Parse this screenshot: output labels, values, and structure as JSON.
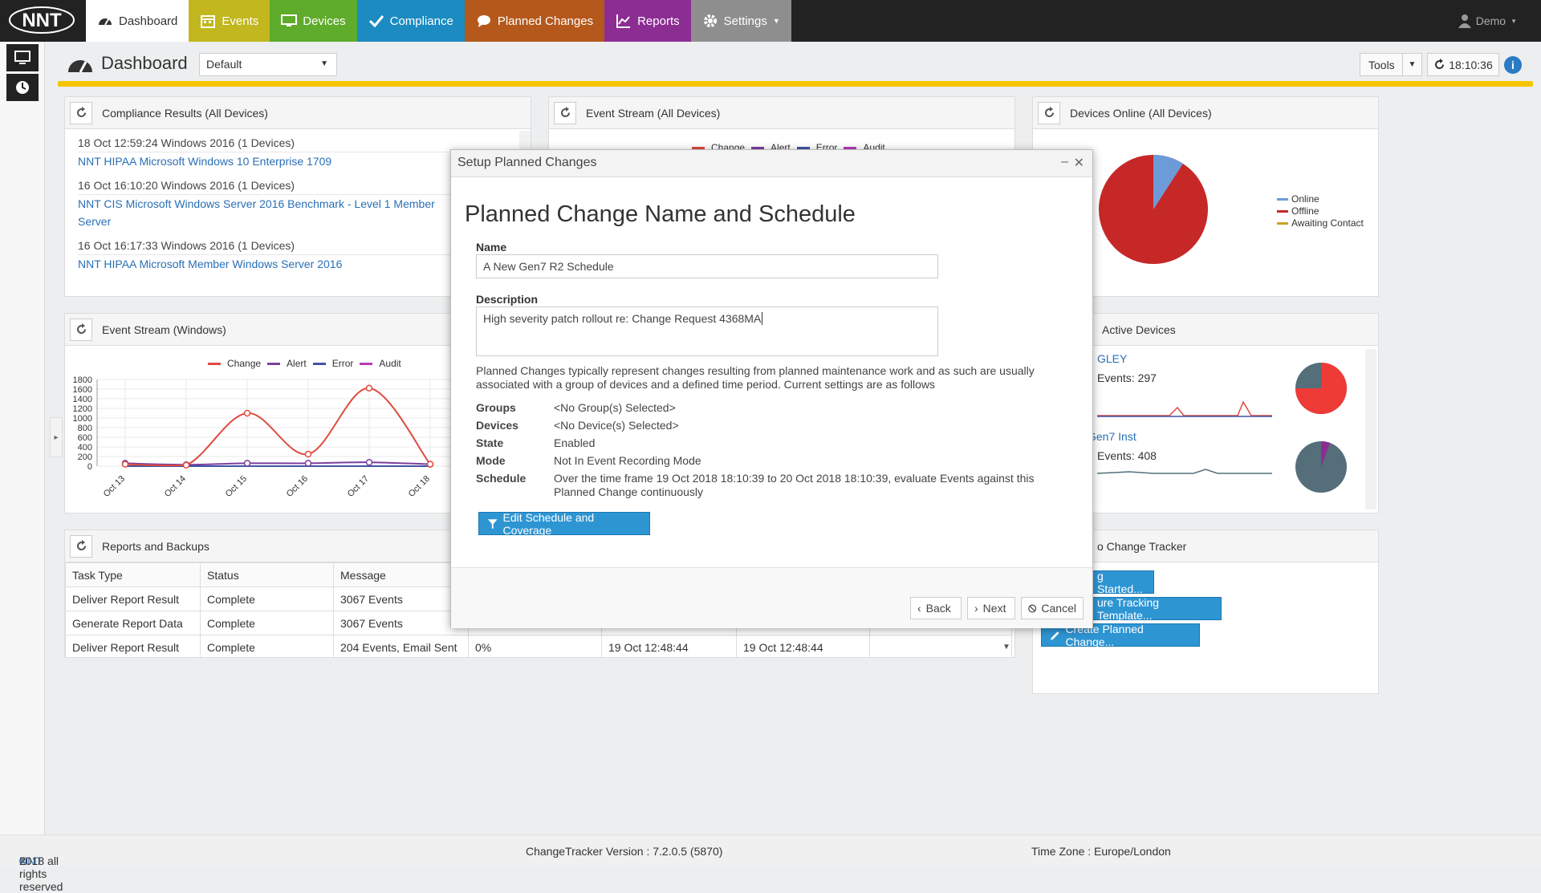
{
  "nav": {
    "tabs": [
      {
        "label": "Dashboard",
        "icon": "dashboard-icon",
        "bg": "#ffffff",
        "fg": "#333333"
      },
      {
        "label": "Events",
        "icon": "calendar-icon",
        "bg": "#c2b71e",
        "fg": "#ffffff"
      },
      {
        "label": "Devices",
        "icon": "monitor-icon",
        "bg": "#5fab2b",
        "fg": "#ffffff"
      },
      {
        "label": "Compliance",
        "icon": "check-icon",
        "bg": "#1b8bc2",
        "fg": "#ffffff"
      },
      {
        "label": "Planned Changes",
        "icon": "speech-bubble-icon",
        "bg": "#b5581c",
        "fg": "#ffffff"
      },
      {
        "label": "Reports",
        "icon": "chart-icon",
        "bg": "#8c2d93",
        "fg": "#ffffff"
      },
      {
        "label": "Settings",
        "icon": "gear-icon",
        "bg": "#8e8e8e",
        "fg": "#ffffff"
      }
    ],
    "user": "Demo"
  },
  "header": {
    "title": "Dashboard",
    "dashboard_select": "Default",
    "tools_label": "Tools",
    "clock": "18:10:36"
  },
  "compliance_panel": {
    "title": "Compliance Results (All Devices)",
    "entries": [
      {
        "header": "18 Oct 12:59:24 Windows 2016 (1 Devices)",
        "link": "NNT HIPAA Microsoft Windows 10 Enterprise 1709",
        "link2": ""
      },
      {
        "header": "16 Oct 16:10:20 Windows 2016 (1 Devices)",
        "link": "NNT CIS Microsoft Windows Server 2016 Benchmark - Level 1 Member",
        "link2": "Server"
      },
      {
        "header": "16 Oct 16:17:33 Windows 2016 (1 Devices)",
        "link": "NNT HIPAA Microsoft Member Windows Server 2016",
        "link2": ""
      }
    ]
  },
  "event_stream_all": {
    "title": "Event Stream (All Devices)"
  },
  "legend": {
    "change": "Change",
    "alert": "Alert",
    "error": "Error",
    "audit": "Audit",
    "colors": {
      "change": "#e04a3f",
      "alert": "#7b3fa0",
      "error": "#3f55a6",
      "audit": "#b83bb8"
    }
  },
  "devices_online": {
    "title": "Devices Online (All Devices)",
    "legend": [
      "Online",
      "Offline",
      "Awaiting Contact"
    ],
    "legend_colors": [
      "#6c9bd8",
      "#c62828",
      "#c9a227"
    ]
  },
  "event_stream_windows": {
    "title": "Event Stream (Windows)"
  },
  "chart_data": {
    "type": "line",
    "categories": [
      "Oct 13",
      "Oct 14",
      "Oct 15",
      "Oct 16",
      "Oct 17",
      "Oct 18"
    ],
    "ylim": [
      0,
      1800
    ],
    "yticks": [
      "1800",
      "1600",
      "1400",
      "1200",
      "1000",
      "800",
      "600",
      "400",
      "200",
      "0"
    ],
    "series": [
      {
        "name": "Change",
        "values": [
          40,
          20,
          1100,
          250,
          1620,
          40
        ]
      },
      {
        "name": "Alert",
        "values": [
          60,
          30,
          60,
          60,
          80,
          40
        ]
      },
      {
        "name": "Error",
        "values": [
          0,
          0,
          0,
          0,
          0,
          0
        ]
      },
      {
        "name": "Audit",
        "values": [
          0,
          0,
          0,
          0,
          0,
          0
        ]
      }
    ]
  },
  "active_devices": {
    "title": "Active Devices",
    "devices": [
      {
        "name": "GLEY",
        "events": "Events: 297"
      },
      {
        "name": "Gen7 Inst",
        "events": "Events: 408"
      }
    ]
  },
  "reports_panel": {
    "title": "Reports and Backups",
    "columns": [
      "Task Type",
      "Status",
      "Message",
      "",
      "",
      "",
      ""
    ],
    "rows": [
      [
        "Deliver Report Result",
        "Complete",
        "3067 Events",
        "",
        "",
        "",
        ""
      ],
      [
        "Generate Report Data",
        "Complete",
        "3067 Events",
        "",
        "",
        "",
        ""
      ],
      [
        "Deliver Report Result",
        "Complete",
        "204 Events, Email Sent",
        "0%",
        "19 Oct 12:48:44",
        "19 Oct 12:48:44",
        ""
      ]
    ]
  },
  "welcome_panel": {
    "title": "o Change Tracker",
    "buttons": [
      "g Started...",
      "ure Tracking Template...",
      "Create Planned Change..."
    ]
  },
  "modal": {
    "title": "Setup Planned Changes",
    "heading": "Planned Change Name and Schedule",
    "name_label": "Name",
    "name_value": "A New Gen7 R2 Schedule",
    "description_label": "Description",
    "description_value": "High severity patch rollout re: Change Request 4368MA",
    "help_text": "Planned Changes typically represent changes resulting from planned maintenance work and as such are usually associated with a group of devices and a defined time period. Current settings are as follows",
    "settings": [
      {
        "key": "Groups",
        "value": "<No Group(s) Selected>"
      },
      {
        "key": "Devices",
        "value": "<No Device(s) Selected>"
      },
      {
        "key": "State",
        "value": "Enabled"
      },
      {
        "key": "Mode",
        "value": "Not In Event Recording Mode"
      },
      {
        "key": "Schedule",
        "value": "Over the time frame 19 Oct 2018 18:10:39 to 20 Oct 2018 18:10:39, evaluate Events against this Planned Change continuously"
      }
    ],
    "edit_button": "Edit Schedule and Coverage",
    "back_button": "Back",
    "next_button": "Next",
    "cancel_button": "Cancel"
  },
  "footer": {
    "copyright_prefix": "©",
    "brand": "NNT",
    "copyright_rest": "2018 all rights reserved",
    "version": "ChangeTracker Version : 7.2.0.5 (5870)",
    "timezone": "Time Zone : Europe/London"
  }
}
